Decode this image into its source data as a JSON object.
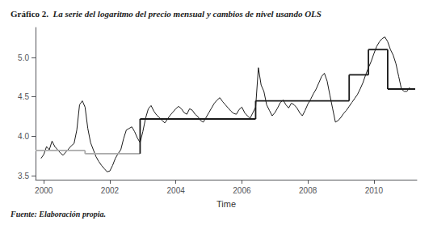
{
  "chart_data": {
    "type": "line",
    "title": "Gráfico 2.",
    "subtitle": "La serie del logaritmo del precio mensual y cambios de nivel usando OLS",
    "xlabel": "Time",
    "annotations": [
      "Fuente: Elaboración propia."
    ],
    "xlim": [
      1999.75,
      2011.3
    ],
    "ylim": [
      3.45,
      5.38
    ],
    "xticks": [
      2000,
      2002,
      2004,
      2006,
      2008,
      2010
    ],
    "yticks": [
      3.5,
      {
        "value": 4.0,
        "label": "4.0"
      },
      4.5,
      {
        "value": 5.0,
        "label": "5.0"
      }
    ],
    "grid": false,
    "x": [
      1999.917,
      2000.0,
      2000.083,
      2000.167,
      2000.25,
      2000.333,
      2000.417,
      2000.5,
      2000.583,
      2000.667,
      2000.75,
      2000.833,
      2000.917,
      2001.0,
      2001.083,
      2001.167,
      2001.25,
      2001.333,
      2001.417,
      2001.5,
      2001.583,
      2001.667,
      2001.75,
      2001.833,
      2001.917,
      2002.0,
      2002.083,
      2002.167,
      2002.25,
      2002.333,
      2002.417,
      2002.5,
      2002.583,
      2002.667,
      2002.75,
      2002.833,
      2002.917,
      2003.0,
      2003.083,
      2003.167,
      2003.25,
      2003.333,
      2003.417,
      2003.5,
      2003.583,
      2003.667,
      2003.75,
      2003.833,
      2003.917,
      2004.0,
      2004.083,
      2004.167,
      2004.25,
      2004.333,
      2004.417,
      2004.5,
      2004.583,
      2004.667,
      2004.75,
      2004.833,
      2004.917,
      2005.0,
      2005.083,
      2005.167,
      2005.25,
      2005.333,
      2005.417,
      2005.5,
      2005.583,
      2005.667,
      2005.75,
      2005.833,
      2005.917,
      2006.0,
      2006.083,
      2006.167,
      2006.25,
      2006.333,
      2006.417,
      2006.5,
      2006.583,
      2006.667,
      2006.75,
      2006.833,
      2006.917,
      2007.0,
      2007.083,
      2007.167,
      2007.25,
      2007.333,
      2007.417,
      2007.5,
      2007.583,
      2007.667,
      2007.75,
      2007.833,
      2007.917,
      2008.0,
      2008.083,
      2008.167,
      2008.25,
      2008.333,
      2008.417,
      2008.5,
      2008.583,
      2008.667,
      2008.75,
      2008.833,
      2008.917,
      2009.0,
      2009.083,
      2009.167,
      2009.25,
      2009.333,
      2009.417,
      2009.5,
      2009.583,
      2009.667,
      2009.75,
      2009.833,
      2009.917,
      2010.0,
      2010.083,
      2010.167,
      2010.25,
      2010.333,
      2010.417,
      2010.5,
      2010.583,
      2010.667,
      2010.75,
      2010.833,
      2010.917,
      2011.0,
      2011.083
    ],
    "series": [
      {
        "color": "#1a1a1a",
        "values": [
          3.72,
          3.77,
          3.87,
          3.83,
          3.94,
          3.87,
          3.83,
          3.79,
          3.76,
          3.8,
          3.84,
          3.88,
          3.91,
          4.08,
          4.4,
          4.45,
          4.37,
          4.1,
          3.92,
          3.83,
          3.74,
          3.68,
          3.63,
          3.59,
          3.55,
          3.56,
          3.63,
          3.72,
          3.78,
          3.83,
          3.97,
          4.08,
          4.1,
          4.12,
          4.06,
          3.98,
          3.92,
          4.06,
          4.23,
          4.35,
          4.39,
          4.32,
          4.27,
          4.24,
          4.2,
          4.17,
          4.22,
          4.27,
          4.31,
          4.35,
          4.38,
          4.35,
          4.3,
          4.28,
          4.35,
          4.33,
          4.28,
          4.25,
          4.2,
          4.18,
          4.24,
          4.3,
          4.36,
          4.42,
          4.46,
          4.49,
          4.44,
          4.4,
          4.36,
          4.32,
          4.29,
          4.28,
          4.34,
          4.37,
          4.3,
          4.26,
          4.23,
          4.3,
          4.37,
          4.87,
          4.65,
          4.57,
          4.4,
          4.33,
          4.26,
          4.3,
          4.36,
          4.43,
          4.46,
          4.4,
          4.36,
          4.42,
          4.4,
          4.36,
          4.3,
          4.26,
          4.33,
          4.41,
          4.47,
          4.54,
          4.6,
          4.68,
          4.76,
          4.8,
          4.7,
          4.52,
          4.35,
          4.18,
          4.2,
          4.24,
          4.29,
          4.33,
          4.38,
          4.43,
          4.48,
          4.53,
          4.6,
          4.68,
          4.78,
          4.87,
          4.95,
          5.05,
          5.14,
          5.2,
          5.24,
          5.26,
          5.2,
          5.1,
          5.03,
          4.92,
          4.76,
          4.6,
          4.57,
          4.57,
          4.62
        ]
      }
    ],
    "segments": [
      {
        "x_start": 1999.75,
        "x_end": 2001.25,
        "y": 3.82,
        "color": "#aaaaaa"
      },
      {
        "x_start": 2001.25,
        "x_end": 2002.917,
        "y": 3.78,
        "color": "#aaaaaa"
      },
      {
        "x_start": 2002.917,
        "x_end": 2006.417,
        "y": 4.22,
        "color": "#1a1a1a"
      },
      {
        "x_start": 2006.417,
        "x_end": 2009.25,
        "y": 4.45,
        "color": "#1a1a1a"
      },
      {
        "x_start": 2009.25,
        "x_end": 2009.833,
        "y": 4.78,
        "color": "#1a1a1a"
      },
      {
        "x_start": 2009.833,
        "x_end": 2010.417,
        "y": 5.1,
        "color": "#1a1a1a"
      },
      {
        "x_start": 2010.417,
        "x_end": 2011.25,
        "y": 4.6,
        "color": "#1a1a1a"
      }
    ]
  }
}
